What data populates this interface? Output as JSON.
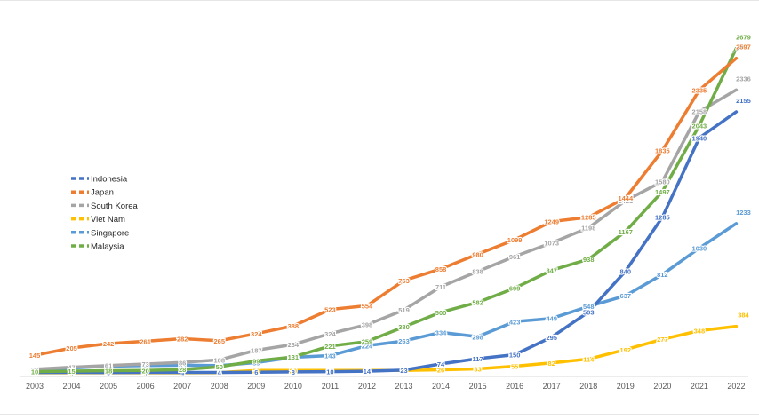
{
  "chart_data": {
    "type": "line",
    "title": "",
    "xlabel": "",
    "ylabel": "",
    "x": [
      "2003",
      "2004",
      "2005",
      "2006",
      "2007",
      "2008",
      "2009",
      "2010",
      "2011",
      "2012",
      "2013",
      "2014",
      "2015",
      "2016",
      "2017",
      "2018",
      "2019",
      "2020",
      "2021",
      "2022"
    ],
    "ylim": [
      0,
      2800
    ],
    "grid": false,
    "legend_position": "left",
    "series": [
      {
        "name": "Indonesia",
        "color": "#4472c4",
        "values": [
          3,
          4,
          3,
          4,
          4,
          4,
          6,
          8,
          10,
          14,
          23,
          74,
          117,
          150,
          295,
          503,
          840,
          1285,
          1940,
          2155
        ]
      },
      {
        "name": "Japan",
        "color": "#ed7d31",
        "values": [
          145,
          205,
          242,
          261,
          282,
          265,
          324,
          388,
          523,
          554,
          763,
          858,
          980,
          1099,
          1249,
          1285,
          1444,
          1835,
          2335,
          2597
        ]
      },
      {
        "name": "South Korea",
        "color": "#a5a5a5",
        "values": [
          30,
          47,
          61,
          73,
          86,
          108,
          187,
          234,
          324,
          398,
          519,
          711,
          838,
          961,
          1073,
          1198,
          1421,
          1580,
          2158,
          2336
        ]
      },
      {
        "name": "Viet Nam",
        "color": "#ffc000",
        "values": [
          1,
          1,
          1,
          1,
          1,
          2,
          20,
          20,
          20,
          20,
          20,
          26,
          33,
          55,
          82,
          114,
          192,
          277,
          348,
          384
        ]
      },
      {
        "name": "Singapore",
        "color": "#5b9bd5",
        "values": [
          20,
          40,
          55,
          60,
          63,
          60,
          85,
          128,
          143,
          224,
          263,
          334,
          298,
          423,
          449,
          548,
          637,
          812,
          1030,
          1233
        ]
      },
      {
        "name": "Malaysia",
        "color": "#70ad47",
        "values": [
          10,
          15,
          18,
          20,
          28,
          50,
          99,
          131,
          221,
          259,
          380,
          500,
          582,
          699,
          847,
          938,
          1167,
          1497,
          2043,
          2679
        ]
      }
    ],
    "label_texts": [
      [
        "3",
        "4",
        "3",
        "4",
        "4",
        "4",
        "6",
        "8",
        "10",
        "14",
        "23",
        "74",
        "117",
        "150",
        "295",
        "503",
        "840",
        "1285",
        "1940",
        "2155"
      ],
      [
        "145",
        "205",
        "242",
        "261",
        "282",
        "265",
        "324",
        "388",
        "523",
        "554",
        "763",
        "858",
        "980",
        "1099",
        "1249",
        "1285",
        "1444",
        "1835",
        "2335",
        "2597"
      ],
      [
        "30",
        "47",
        "61",
        "73",
        "86",
        "108",
        "187",
        "234",
        "324",
        "398",
        "519",
        "711",
        "838",
        "961",
        "1073",
        "1198",
        "1421",
        "1580",
        "2158",
        "2336"
      ],
      [
        "1",
        "1",
        "1",
        "1",
        "1",
        "2",
        "20",
        "20",
        "20",
        "20",
        "20",
        "26",
        "33",
        "55",
        "82",
        "114",
        "192",
        "277",
        "348",
        "384"
      ],
      [
        "20",
        "40",
        "55",
        "60",
        "63",
        "60",
        "85",
        "128",
        "143",
        "224",
        "263",
        "334",
        "298",
        "423",
        "449",
        "548",
        "637",
        "812",
        "1030",
        "1233"
      ],
      [
        "10",
        "15",
        "18",
        "20",
        "28",
        "50",
        "99",
        "131",
        "221",
        "259",
        "380",
        "500",
        "582",
        "699",
        "847",
        "938",
        "1167",
        "1497",
        "2043",
        "2679"
      ]
    ]
  }
}
